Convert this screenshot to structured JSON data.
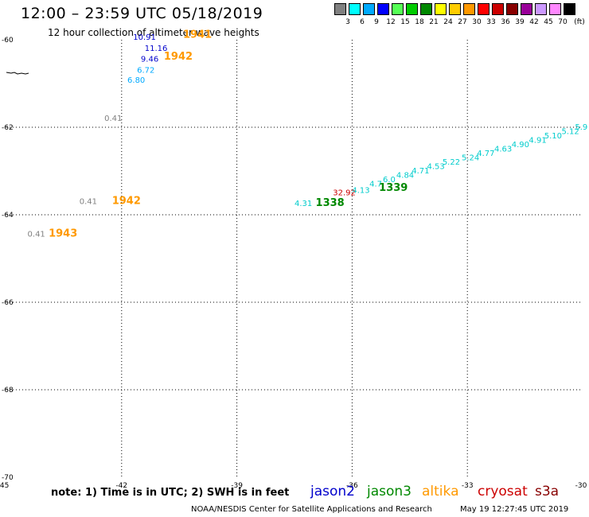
{
  "header": {
    "title": "12:00 – 23:59 UTC 05/18/2019",
    "subtitle": "12 hour collection of altimeter wave heights"
  },
  "legend": {
    "unit": "(ft)",
    "items": [
      {
        "label": "3",
        "color": "#808080"
      },
      {
        "label": "6",
        "color": "#00ffff"
      },
      {
        "label": "9",
        "color": "#00aaff"
      },
      {
        "label": "12",
        "color": "#0000ff"
      },
      {
        "label": "15",
        "color": "#55ff55"
      },
      {
        "label": "18",
        "color": "#00cc00"
      },
      {
        "label": "21",
        "color": "#008800"
      },
      {
        "label": "24",
        "color": "#ffff00"
      },
      {
        "label": "27",
        "color": "#ffcc00"
      },
      {
        "label": "30",
        "color": "#ff9900"
      },
      {
        "label": "33",
        "color": "#ff0000"
      },
      {
        "label": "36",
        "color": "#cc0000"
      },
      {
        "label": "39",
        "color": "#880000"
      },
      {
        "label": "42",
        "color": "#990099"
      },
      {
        "label": "45",
        "color": "#cc99ff"
      },
      {
        "label": "70",
        "color": "#ff88ff"
      },
      {
        "label": "",
        "color": "#000000"
      }
    ]
  },
  "axes": {
    "lon_ticks": [
      "-45",
      "-42",
      "-39",
      "-36",
      "-33",
      "-30"
    ],
    "lat_ticks": [
      "-60",
      "-62",
      "-64",
      "-66",
      "-68",
      "-70"
    ]
  },
  "observations": [
    {
      "value": "10.91",
      "lon": -41.7,
      "lat": -60.0,
      "color": "#0000cc"
    },
    {
      "value": "11.16",
      "lon": -41.4,
      "lat": -60.25,
      "color": "#0000cc"
    },
    {
      "value": "9.46",
      "lon": -41.5,
      "lat": -60.5,
      "color": "#0000cc"
    },
    {
      "value": "6.72",
      "lon": -41.6,
      "lat": -60.75,
      "color": "#00aaff"
    },
    {
      "value": "6.80",
      "lon": -41.85,
      "lat": -60.98,
      "color": "#00aaff"
    },
    {
      "value": "0.41",
      "lon": -42.45,
      "lat": -61.85,
      "color": "#808080"
    },
    {
      "value": "0.41",
      "lon": -43.1,
      "lat": -63.75,
      "color": "#808080"
    },
    {
      "value": "0.41",
      "lon": -44.45,
      "lat": -64.5,
      "color": "#808080"
    },
    {
      "value": "4.31",
      "lon": -37.5,
      "lat": -63.8,
      "color": "#00cccc"
    },
    {
      "value": "32.92",
      "lon": -36.5,
      "lat": -63.55,
      "color": "#cc0000"
    },
    {
      "value": "4.13",
      "lon": -36.0,
      "lat": -63.5,
      "color": "#00cccc"
    },
    {
      "value": "4.7",
      "lon": -35.55,
      "lat": -63.35,
      "color": "#00cccc"
    },
    {
      "value": "6.0",
      "lon": -35.2,
      "lat": -63.25,
      "color": "#00cccc"
    },
    {
      "value": "4.84",
      "lon": -34.85,
      "lat": -63.15,
      "color": "#00cccc"
    },
    {
      "value": "4.71",
      "lon": -34.45,
      "lat": -63.05,
      "color": "#00cccc"
    },
    {
      "value": "4.53",
      "lon": -34.05,
      "lat": -62.95,
      "color": "#00cccc"
    },
    {
      "value": "5.22",
      "lon": -33.65,
      "lat": -62.85,
      "color": "#00cccc"
    },
    {
      "value": "5.24",
      "lon": -33.15,
      "lat": -62.75,
      "color": "#00cccc"
    },
    {
      "value": "4.77",
      "lon": -32.75,
      "lat": -62.65,
      "color": "#00cccc"
    },
    {
      "value": "4.63",
      "lon": -32.3,
      "lat": -62.55,
      "color": "#00cccc"
    },
    {
      "value": "4.90",
      "lon": -31.85,
      "lat": -62.45,
      "color": "#00cccc"
    },
    {
      "value": "4.91",
      "lon": -31.4,
      "lat": -62.35,
      "color": "#00cccc"
    },
    {
      "value": "5.10",
      "lon": -31.0,
      "lat": -62.25,
      "color": "#00cccc"
    },
    {
      "value": "5.12",
      "lon": -30.55,
      "lat": -62.15,
      "color": "#00cccc"
    },
    {
      "value": "5.9",
      "lon": -30.2,
      "lat": -62.05,
      "color": "#00cccc"
    }
  ],
  "pass_labels": [
    {
      "value": "1941",
      "lon": -40.4,
      "lat": -59.95,
      "color": "#ff9900"
    },
    {
      "value": "1942",
      "lon": -40.9,
      "lat": -60.45,
      "color": "#ff9900"
    },
    {
      "value": "1942",
      "lon": -42.25,
      "lat": -63.75,
      "color": "#ff9900"
    },
    {
      "value": "1943",
      "lon": -43.9,
      "lat": -64.5,
      "color": "#ff9900"
    },
    {
      "value": "1338",
      "lon": -36.95,
      "lat": -63.8,
      "color": "#008800"
    },
    {
      "value": "1339",
      "lon": -35.3,
      "lat": -63.45,
      "color": "#008800"
    }
  ],
  "footer": {
    "note": "note: 1) Time is in UTC; 2) SWH is in feet",
    "satellites": [
      {
        "name": "jason2",
        "color": "#0000cc"
      },
      {
        "name": "jason3",
        "color": "#008800"
      },
      {
        "name": "altika",
        "color": "#ff9900"
      },
      {
        "name": "cryosat",
        "color": "#cc0000"
      },
      {
        "name": "s3a",
        "color": "#880000"
      }
    ],
    "credit": "NOAA/NESDIS Center for Satellite Applications and Research",
    "timestamp": "May 19 12:27:45 UTC 2019"
  }
}
